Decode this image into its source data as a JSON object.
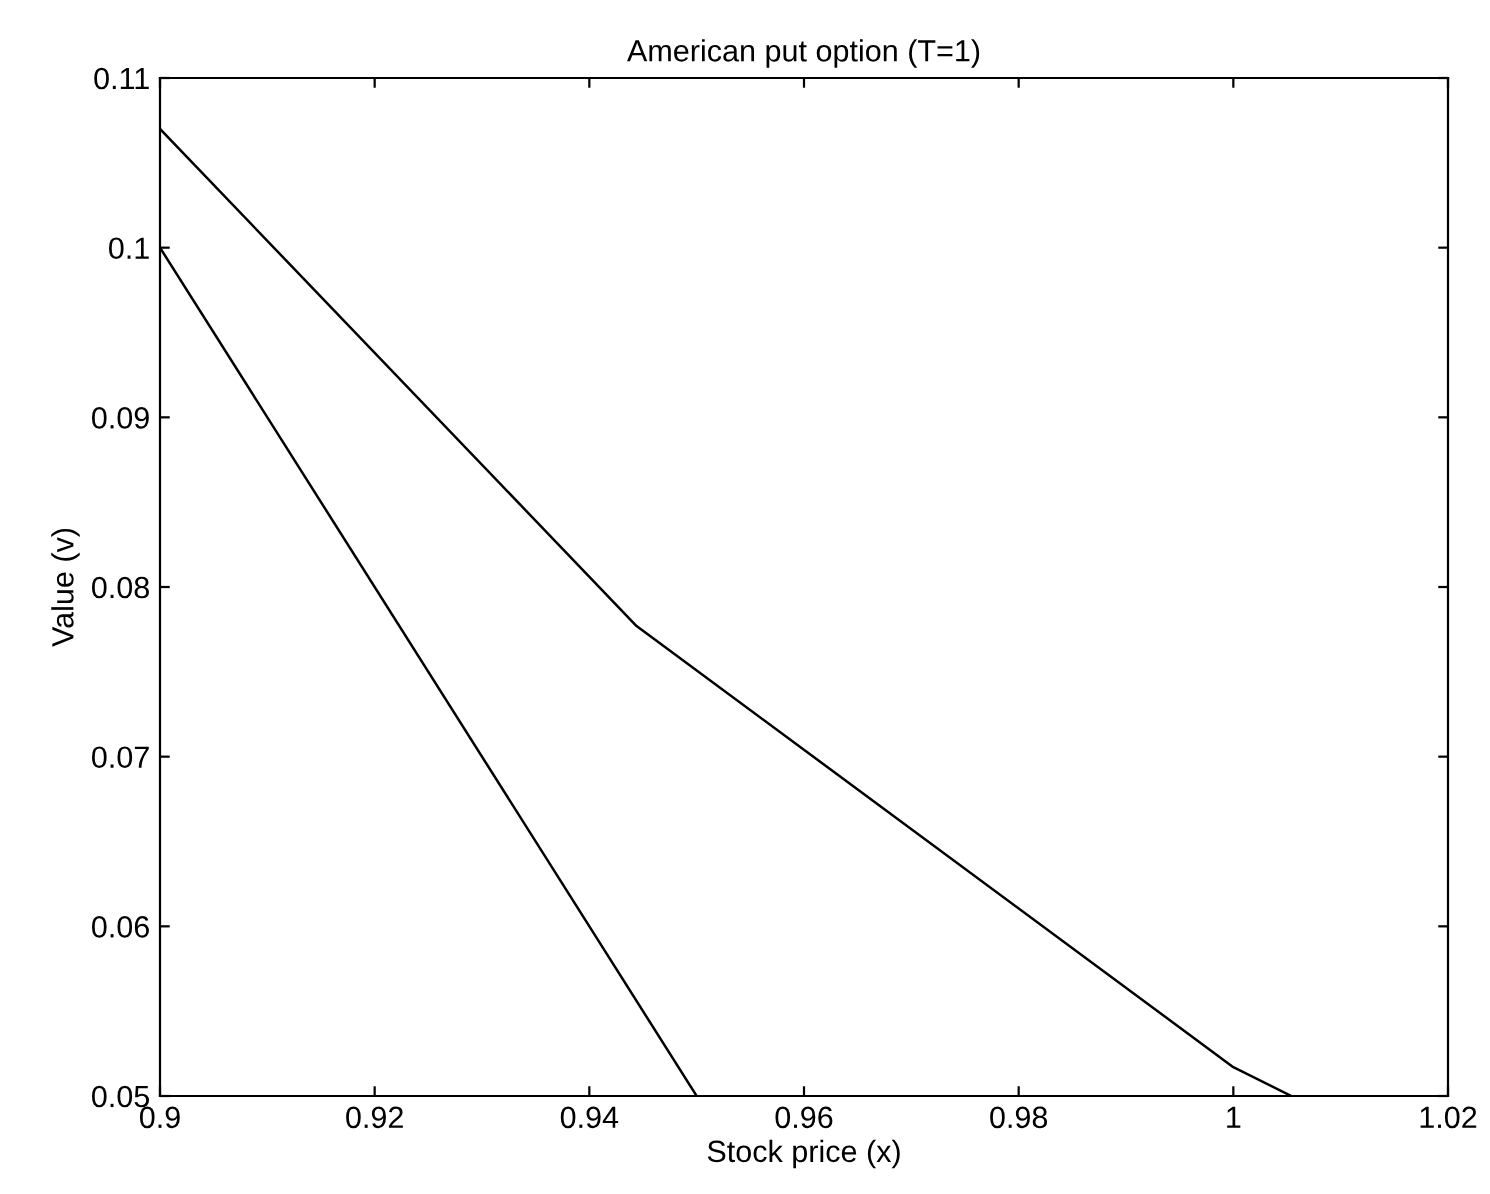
{
  "chart_data": {
    "type": "line",
    "title": "American put option (T=1)",
    "xlabel": "Stock price (x)",
    "ylabel": "Value (v)",
    "series": [
      {
        "color": "#000000",
        "x": [
          0.9,
          0.95
        ],
        "values": [
          0.1,
          0.05
        ]
      },
      {
        "color": "#000000",
        "x": [
          0.9,
          0.9444,
          1.0,
          1.0054
        ],
        "values": [
          0.107,
          0.0777,
          0.0517,
          0.05
        ]
      }
    ],
    "xlim": [
      0.9,
      1.02
    ],
    "xticks": [
      0.9,
      0.92,
      0.94,
      0.96,
      0.98,
      1,
      1.02
    ],
    "ylim": [
      0.05,
      0.11
    ],
    "yticks": [
      0.05,
      0.06,
      0.07,
      0.08,
      0.09,
      0.1,
      0.11
    ],
    "grid": false,
    "marker": "none",
    "line_style": "solid"
  }
}
